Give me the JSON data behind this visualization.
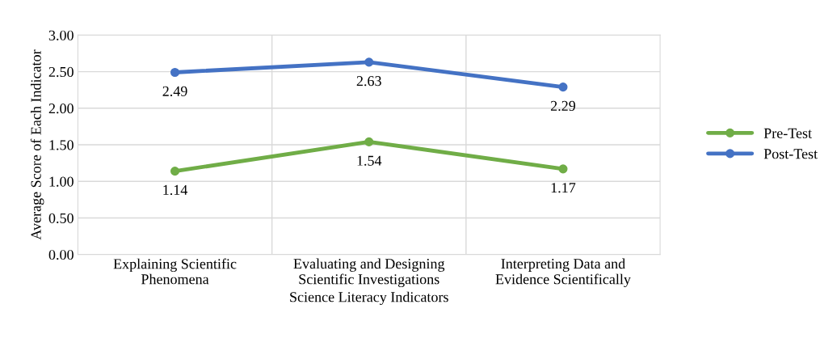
{
  "chart_data": {
    "type": "line",
    "xlabel": "Science Literacy Indicators",
    "ylabel": "Average Score of Each Indicator",
    "categories": [
      "Explaining Scientific\nPhenomena",
      "Evaluating and Designing\nScientific Investigations",
      "Interpreting Data and\nEvidence Scientifically"
    ],
    "series": [
      {
        "name": "Pre-Test",
        "color": "#70ad47",
        "values": [
          1.14,
          1.54,
          1.17
        ]
      },
      {
        "name": "Post-Test",
        "color": "#4472c4",
        "values": [
          2.49,
          2.63,
          2.29
        ]
      }
    ],
    "ylim": [
      0,
      3
    ],
    "yticks": [
      {
        "value": 0,
        "label": "0.00"
      },
      {
        "value": 0.5,
        "label": "0.50"
      },
      {
        "value": 1,
        "label": "1.00"
      },
      {
        "value": 1.5,
        "label": "1.50"
      },
      {
        "value": 2,
        "label": "2.00"
      },
      {
        "value": 2.5,
        "label": "2.50"
      },
      {
        "value": 3,
        "label": "3.00"
      }
    ],
    "grid": true,
    "legend": "right",
    "marker": "circle",
    "line_style": "solid",
    "data_labels": true
  }
}
